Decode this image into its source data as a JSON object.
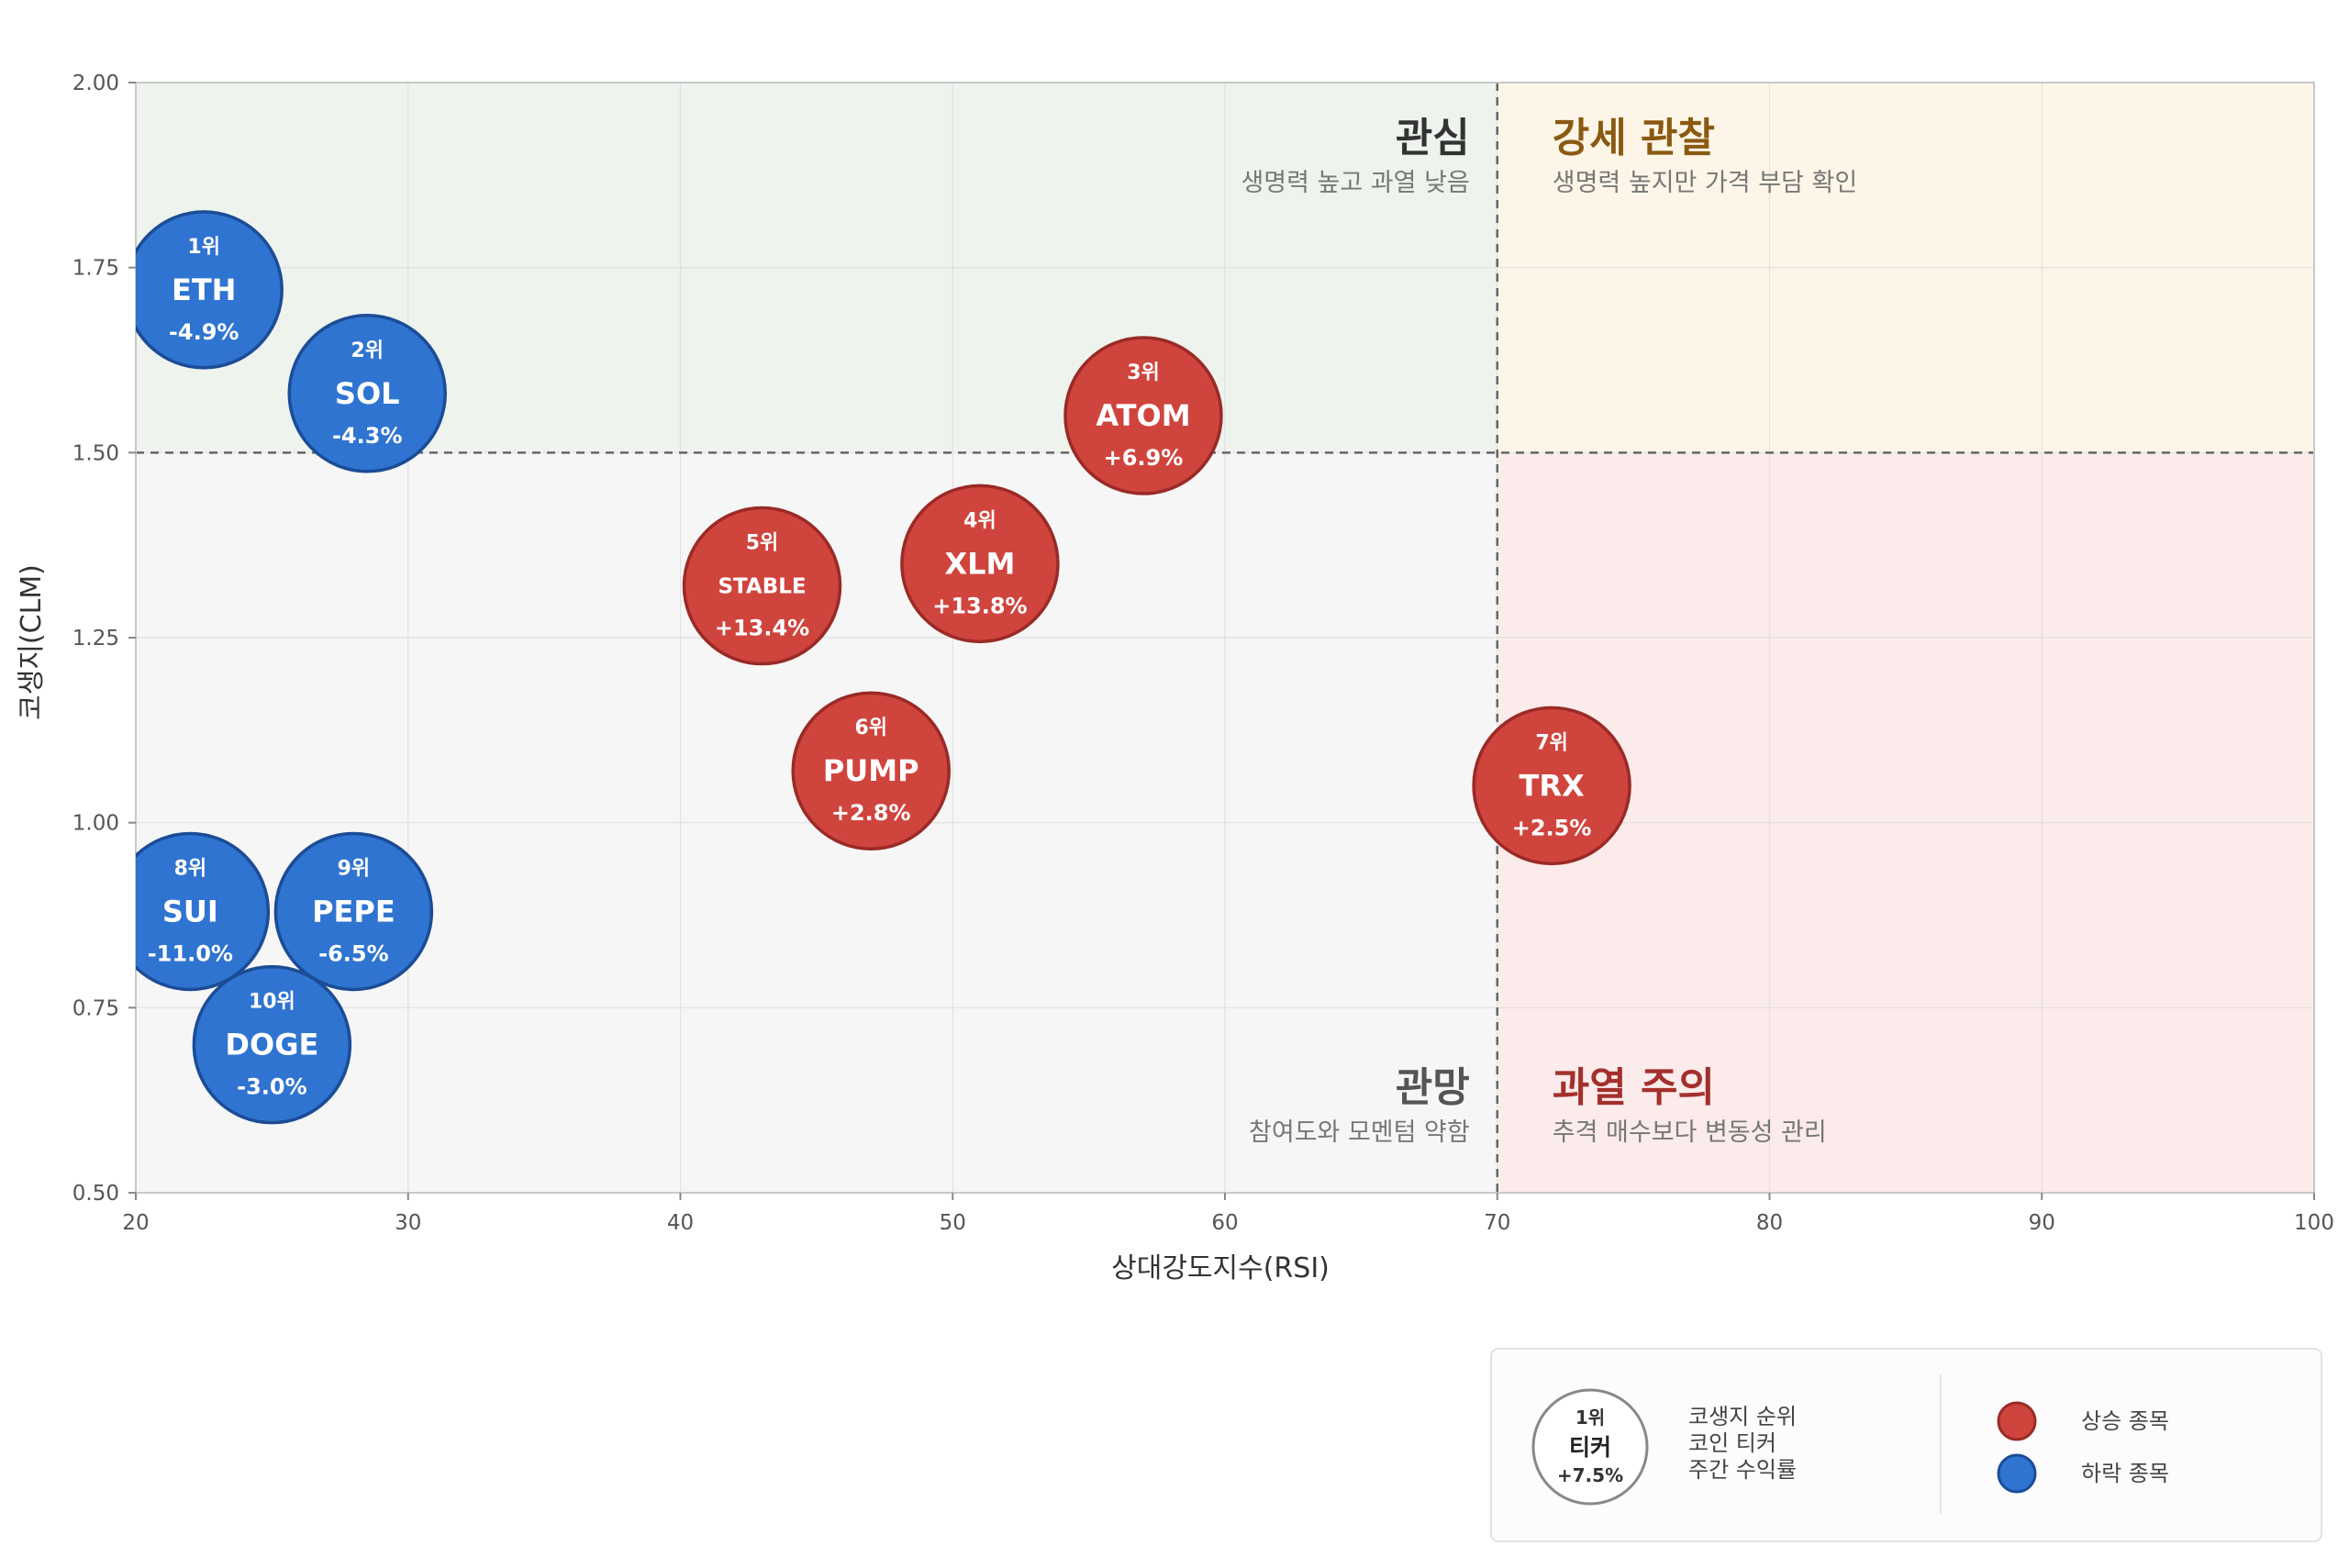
{
  "chart_data": {
    "type": "scatter",
    "xlabel": "상대강도지수(RSI)",
    "ylabel": "코생지(CLM)",
    "xlim": [
      20,
      100
    ],
    "ylim": [
      0.5,
      2.0
    ],
    "x_ticks": [
      "20",
      "30",
      "40",
      "50",
      "60",
      "70",
      "80",
      "90",
      "100"
    ],
    "y_ticks": [
      "0.50",
      "0.75",
      "1.00",
      "1.25",
      "1.50",
      "1.75",
      "2.00"
    ],
    "thresholds": {
      "x": 70,
      "y": 1.5
    },
    "grid": true,
    "quadrants": [
      {
        "key": "top-left",
        "title": "관심",
        "subtitle": "생명력 높고 과열 낮음",
        "fill": "#eef3ee",
        "title_color": "#333333"
      },
      {
        "key": "top-right",
        "title": "강세 관찰",
        "subtitle": "생명력 높지만 가격 부담 확인",
        "fill": "#fdf6e8",
        "title_color": "#8a5a12"
      },
      {
        "key": "bottom-left",
        "title": "관망",
        "subtitle": "참여도와 모멘텀 약함",
        "fill": "#f6f6f6",
        "title_color": "#555555"
      },
      {
        "key": "bottom-right",
        "title": "과열 주의",
        "subtitle": "추격 매수보다 변동성 관리",
        "fill": "#fcebeb",
        "title_color": "#a3302c"
      }
    ],
    "points": [
      {
        "rank": "1위",
        "ticker": "ETH",
        "return": "-4.9%",
        "x": 22.5,
        "y": 1.72,
        "trend": "down"
      },
      {
        "rank": "2위",
        "ticker": "SOL",
        "return": "-4.3%",
        "x": 28.5,
        "y": 1.58,
        "trend": "down"
      },
      {
        "rank": "3위",
        "ticker": "ATOM",
        "return": "+6.9%",
        "x": 57.0,
        "y": 1.55,
        "trend": "up"
      },
      {
        "rank": "4위",
        "ticker": "XLM",
        "return": "+13.8%",
        "x": 51.0,
        "y": 1.35,
        "trend": "up"
      },
      {
        "rank": "5위",
        "ticker": "STABLE",
        "return": "+13.4%",
        "x": 43.0,
        "y": 1.32,
        "trend": "up"
      },
      {
        "rank": "6위",
        "ticker": "PUMP",
        "return": "+2.8%",
        "x": 47.0,
        "y": 1.07,
        "trend": "up"
      },
      {
        "rank": "7위",
        "ticker": "TRX",
        "return": "+2.5%",
        "x": 72.0,
        "y": 1.05,
        "trend": "up"
      },
      {
        "rank": "8위",
        "ticker": "SUI",
        "return": "-11.0%",
        "x": 22.0,
        "y": 0.88,
        "trend": "down"
      },
      {
        "rank": "9위",
        "ticker": "PEPE",
        "return": "-6.5%",
        "x": 28.0,
        "y": 0.88,
        "trend": "down"
      },
      {
        "rank": "10위",
        "ticker": "DOGE",
        "return": "-3.0%",
        "x": 25.0,
        "y": 0.7,
        "trend": "down"
      }
    ],
    "colors": {
      "up": "#d0443e",
      "up_stroke": "#9a2a26",
      "down": "#2f74d0",
      "down_stroke": "#1b4c97"
    },
    "legend": {
      "placement": "bottom-right",
      "sample_rank": "1위",
      "sample_ticker": "티커",
      "sample_return": "+7.5%",
      "descriptions": [
        "코생지 순위",
        "코인 티커",
        "주간 수익률"
      ],
      "up_label": "상승 종목",
      "down_label": "하락 종목"
    }
  }
}
